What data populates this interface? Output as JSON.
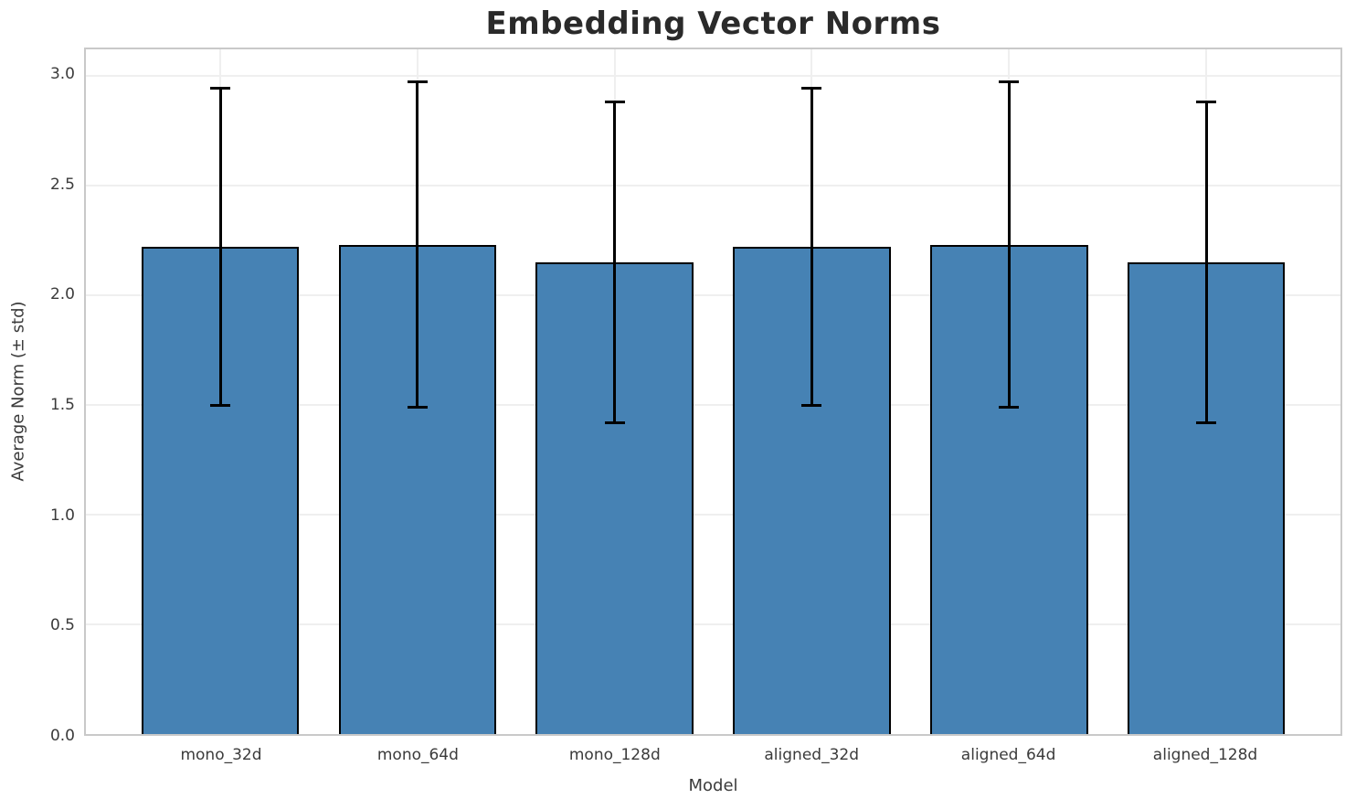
{
  "chart_data": {
    "type": "bar",
    "title": "Embedding Vector Norms",
    "xlabel": "Model",
    "ylabel": "Average Norm (± std)",
    "categories": [
      "mono_32d",
      "mono_64d",
      "mono_128d",
      "aligned_32d",
      "aligned_64d",
      "aligned_128d"
    ],
    "values": [
      2.22,
      2.23,
      2.15,
      2.22,
      2.23,
      2.15
    ],
    "errors": [
      0.72,
      0.74,
      0.73,
      0.72,
      0.74,
      0.73
    ],
    "error_ranges": [
      [
        1.5,
        2.94
      ],
      [
        1.49,
        2.97
      ],
      [
        1.42,
        2.88
      ],
      [
        1.5,
        2.94
      ],
      [
        1.49,
        2.97
      ],
      [
        1.42,
        2.88
      ]
    ],
    "yticks": [
      0.0,
      0.5,
      1.0,
      1.5,
      2.0,
      2.5,
      3.0
    ],
    "ytick_labels": [
      "0.0",
      "0.5",
      "1.0",
      "1.5",
      "2.0",
      "2.5",
      "3.0"
    ],
    "ylim": [
      0,
      3.12
    ],
    "grid": true,
    "legend": null,
    "bar_color": "#4682B4",
    "bar_edge_color": "#000000",
    "error_color": "#000000",
    "grid_color": "#efefef",
    "spine_color": "#c9c9c9",
    "title_color": "#2a2a2a",
    "tick_color": "#3b3b3b"
  }
}
